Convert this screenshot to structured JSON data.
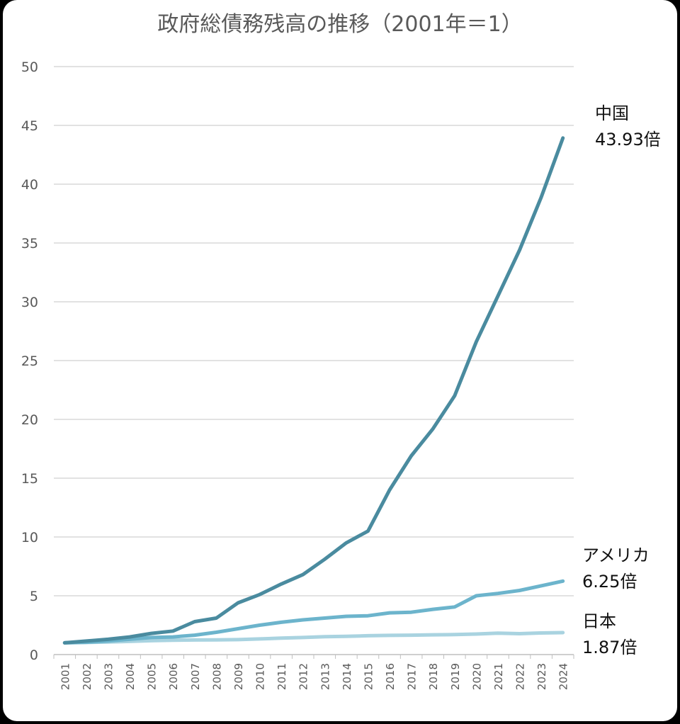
{
  "chart_data": {
    "type": "line",
    "title": "政府総債務残高の推移（2001年＝1）",
    "xlabel": "",
    "ylabel": "",
    "ylim": [
      0,
      50
    ],
    "yticks": [
      0,
      5,
      10,
      15,
      20,
      25,
      30,
      35,
      40,
      45,
      50
    ],
    "grid": true,
    "legend": "none",
    "categories": [
      "2001",
      "2002",
      "2003",
      "2004",
      "2005",
      "2006",
      "2007",
      "2008",
      "2009",
      "2010",
      "2011",
      "2012",
      "2013",
      "2014",
      "2015",
      "2016",
      "2017",
      "2018",
      "2019",
      "2020",
      "2021",
      "2022",
      "2023",
      "2024"
    ],
    "series": [
      {
        "name": "中国",
        "color": "#4a8b9f",
        "values": [
          1.0,
          1.15,
          1.3,
          1.5,
          1.8,
          2.0,
          2.8,
          3.1,
          4.4,
          5.1,
          6.0,
          6.8,
          8.1,
          9.5,
          10.5,
          14.0,
          16.9,
          19.2,
          22.0,
          26.6,
          30.5,
          34.4,
          38.9,
          43.93
        ],
        "end_label_line1": "中国",
        "end_label_line2": "43.93倍"
      },
      {
        "name": "アメリカ",
        "color": "#6cb4cc",
        "values": [
          1.0,
          1.05,
          1.15,
          1.3,
          1.45,
          1.5,
          1.65,
          1.9,
          2.2,
          2.5,
          2.75,
          2.95,
          3.1,
          3.25,
          3.3,
          3.55,
          3.6,
          3.85,
          4.05,
          5.0,
          5.2,
          5.45,
          5.85,
          6.25
        ],
        "end_label_line1": "アメリカ",
        "end_label_line2": "6.25倍"
      },
      {
        "name": "日本",
        "color": "#a9d3e0",
        "values": [
          1.0,
          1.03,
          1.07,
          1.12,
          1.18,
          1.22,
          1.24,
          1.25,
          1.27,
          1.33,
          1.4,
          1.45,
          1.52,
          1.55,
          1.6,
          1.63,
          1.65,
          1.68,
          1.7,
          1.75,
          1.82,
          1.78,
          1.84,
          1.87
        ],
        "end_label_line1": "日本",
        "end_label_line2": "1.87倍"
      }
    ]
  }
}
